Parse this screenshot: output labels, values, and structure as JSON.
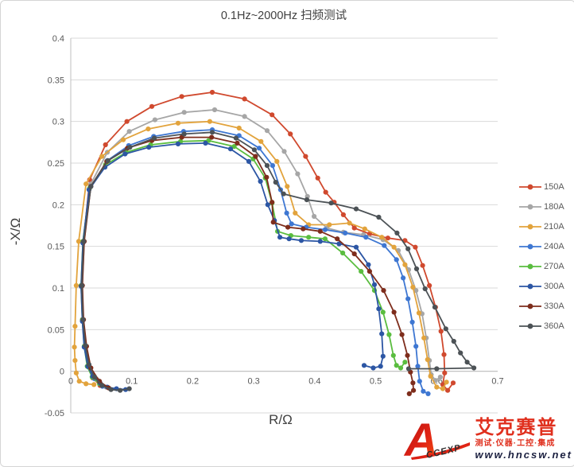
{
  "title": "0.1Hz~2000Hz 扫频测试",
  "colors": {
    "gridline": "#D9D9D9",
    "axis_line": "#BFBFBF",
    "tick_text": "#595959",
    "title_text": "#404040",
    "axis_label_text": "#3F3F3F"
  },
  "chart_data": {
    "type": "line",
    "title": "0.1Hz~2000Hz 扫频测试",
    "xlabel": "R/Ω",
    "ylabel": "-X/Ω",
    "xlim": [
      0,
      0.7
    ],
    "ylim": [
      -0.05,
      0.4
    ],
    "grid": "horizontal-only",
    "legend_position": "right",
    "markers": true,
    "x_ticks": [
      {
        "v": 0,
        "label": "0"
      },
      {
        "v": 0.1,
        "label": "0.1"
      },
      {
        "v": 0.2,
        "label": "0.2"
      },
      {
        "v": 0.3,
        "label": "0.3"
      },
      {
        "v": 0.4,
        "label": "0.4"
      },
      {
        "v": 0.5,
        "label": "0.5"
      },
      {
        "v": 0.6,
        "label": "0.6"
      },
      {
        "v": 0.7,
        "label": "0.7"
      }
    ],
    "y_ticks": [
      {
        "v": 0.4,
        "label": "0.4"
      },
      {
        "v": 0.35,
        "label": "0.35"
      },
      {
        "v": 0.3,
        "label": "0.3"
      },
      {
        "v": 0.25,
        "label": "0.25"
      },
      {
        "v": 0.2,
        "label": "0.2"
      },
      {
        "v": 0.15,
        "label": "0.15"
      },
      {
        "v": 0.1,
        "label": "0.1"
      },
      {
        "v": 0.05,
        "label": "0.05"
      },
      {
        "v": 0,
        "label": "0"
      },
      {
        "v": -0.05,
        "label": "-0.05"
      }
    ],
    "series": [
      {
        "name": "150A",
        "color": "#D0492E",
        "points": [
          [
            0.048,
            -0.017
          ],
          [
            0.036,
            -0.008
          ],
          [
            0.028,
            0.006
          ],
          [
            0.023,
            0.03
          ],
          [
            0.019,
            0.062
          ],
          [
            0.018,
            0.103
          ],
          [
            0.021,
            0.156
          ],
          [
            0.031,
            0.23
          ],
          [
            0.057,
            0.272
          ],
          [
            0.092,
            0.3
          ],
          [
            0.133,
            0.318
          ],
          [
            0.182,
            0.33
          ],
          [
            0.232,
            0.335
          ],
          [
            0.285,
            0.327
          ],
          [
            0.33,
            0.308
          ],
          [
            0.36,
            0.285
          ],
          [
            0.385,
            0.258
          ],
          [
            0.405,
            0.232
          ],
          [
            0.418,
            0.215
          ],
          [
            0.432,
            0.203
          ],
          [
            0.447,
            0.188
          ],
          [
            0.465,
            0.172
          ],
          [
            0.49,
            0.165
          ],
          [
            0.52,
            0.16
          ],
          [
            0.548,
            0.157
          ],
          [
            0.565,
            0.149
          ],
          [
            0.577,
            0.127
          ],
          [
            0.588,
            0.103
          ],
          [
            0.598,
            0.077
          ],
          [
            0.607,
            0.048
          ],
          [
            0.612,
            0.02
          ],
          [
            0.613,
            -0.002
          ],
          [
            0.61,
            -0.016
          ],
          [
            0.618,
            -0.023
          ],
          [
            0.627,
            -0.014
          ]
        ]
      },
      {
        "name": "180A",
        "color": "#A6A6A6",
        "points": [
          [
            0.058,
            -0.019
          ],
          [
            0.043,
            -0.01
          ],
          [
            0.031,
            0.005
          ],
          [
            0.024,
            0.03
          ],
          [
            0.02,
            0.062
          ],
          [
            0.019,
            0.103
          ],
          [
            0.022,
            0.156
          ],
          [
            0.033,
            0.225
          ],
          [
            0.06,
            0.263
          ],
          [
            0.096,
            0.288
          ],
          [
            0.138,
            0.302
          ],
          [
            0.186,
            0.311
          ],
          [
            0.236,
            0.314
          ],
          [
            0.285,
            0.306
          ],
          [
            0.322,
            0.289
          ],
          [
            0.35,
            0.264
          ],
          [
            0.372,
            0.237
          ],
          [
            0.388,
            0.21
          ],
          [
            0.399,
            0.186
          ],
          [
            0.42,
            0.172
          ],
          [
            0.447,
            0.167
          ],
          [
            0.48,
            0.164
          ],
          [
            0.512,
            0.158
          ],
          [
            0.537,
            0.145
          ],
          [
            0.554,
            0.122
          ],
          [
            0.566,
            0.097
          ],
          [
            0.576,
            0.069
          ],
          [
            0.583,
            0.04
          ],
          [
            0.588,
            0.013
          ],
          [
            0.591,
            -0.004
          ],
          [
            0.598,
            -0.011
          ],
          [
            0.606,
            -0.007
          ]
        ]
      },
      {
        "name": "210A",
        "color": "#E2A33C",
        "points": [
          [
            0.038,
            -0.016
          ],
          [
            0.025,
            -0.015
          ],
          [
            0.014,
            -0.012
          ],
          [
            0.009,
            -0.002
          ],
          [
            0.007,
            0.013
          ],
          [
            0.006,
            0.029
          ],
          [
            0.007,
            0.054
          ],
          [
            0.009,
            0.103
          ],
          [
            0.013,
            0.156
          ],
          [
            0.025,
            0.225
          ],
          [
            0.051,
            0.258
          ],
          [
            0.086,
            0.278
          ],
          [
            0.127,
            0.291
          ],
          [
            0.176,
            0.298
          ],
          [
            0.228,
            0.3
          ],
          [
            0.276,
            0.292
          ],
          [
            0.312,
            0.276
          ],
          [
            0.338,
            0.252
          ],
          [
            0.355,
            0.222
          ],
          [
            0.368,
            0.19
          ],
          [
            0.39,
            0.176
          ],
          [
            0.424,
            0.176
          ],
          [
            0.457,
            0.178
          ],
          [
            0.482,
            0.171
          ],
          [
            0.51,
            0.161
          ],
          [
            0.53,
            0.149
          ],
          [
            0.548,
            0.128
          ],
          [
            0.561,
            0.101
          ],
          [
            0.571,
            0.07
          ],
          [
            0.579,
            0.04
          ],
          [
            0.585,
            0.014
          ],
          [
            0.59,
            -0.006
          ],
          [
            0.6,
            -0.019
          ],
          [
            0.61,
            -0.021
          ],
          [
            0.616,
            -0.013
          ]
        ]
      },
      {
        "name": "240A",
        "color": "#3E77D2",
        "points": [
          [
            0.052,
            -0.018
          ],
          [
            0.039,
            -0.009
          ],
          [
            0.029,
            0.005
          ],
          [
            0.023,
            0.03
          ],
          [
            0.02,
            0.062
          ],
          [
            0.018,
            0.103
          ],
          [
            0.021,
            0.156
          ],
          [
            0.033,
            0.222
          ],
          [
            0.06,
            0.253
          ],
          [
            0.095,
            0.271
          ],
          [
            0.136,
            0.282
          ],
          [
            0.185,
            0.288
          ],
          [
            0.232,
            0.29
          ],
          [
            0.276,
            0.283
          ],
          [
            0.309,
            0.268
          ],
          [
            0.331,
            0.247
          ],
          [
            0.344,
            0.218
          ],
          [
            0.354,
            0.19
          ],
          [
            0.362,
            0.177
          ],
          [
            0.386,
            0.173
          ],
          [
            0.417,
            0.17
          ],
          [
            0.45,
            0.166
          ],
          [
            0.484,
            0.161
          ],
          [
            0.514,
            0.151
          ],
          [
            0.534,
            0.134
          ],
          [
            0.545,
            0.112
          ],
          [
            0.553,
            0.087
          ],
          [
            0.56,
            0.059
          ],
          [
            0.566,
            0.03
          ],
          [
            0.569,
            0.006
          ],
          [
            0.572,
            -0.012
          ],
          [
            0.578,
            -0.024
          ],
          [
            0.586,
            -0.027
          ]
        ]
      },
      {
        "name": "270A",
        "color": "#5ABD3F",
        "points": [
          [
            0.047,
            -0.015
          ],
          [
            0.035,
            -0.007
          ],
          [
            0.027,
            0.006
          ],
          [
            0.022,
            0.03
          ],
          [
            0.019,
            0.062
          ],
          [
            0.017,
            0.103
          ],
          [
            0.02,
            0.156
          ],
          [
            0.031,
            0.22
          ],
          [
            0.057,
            0.248
          ],
          [
            0.091,
            0.263
          ],
          [
            0.131,
            0.272
          ],
          [
            0.18,
            0.276
          ],
          [
            0.226,
            0.277
          ],
          [
            0.268,
            0.27
          ],
          [
            0.299,
            0.255
          ],
          [
            0.319,
            0.232
          ],
          [
            0.33,
            0.202
          ],
          [
            0.339,
            0.168
          ],
          [
            0.361,
            0.163
          ],
          [
            0.39,
            0.161
          ],
          [
            0.417,
            0.159
          ],
          [
            0.446,
            0.142
          ],
          [
            0.476,
            0.12
          ],
          [
            0.498,
            0.097
          ],
          [
            0.512,
            0.071
          ],
          [
            0.522,
            0.044
          ],
          [
            0.529,
            0.019
          ],
          [
            0.534,
            0.007
          ],
          [
            0.541,
            0.004
          ],
          [
            0.548,
            0.011
          ]
        ]
      },
      {
        "name": "300A",
        "color": "#2C56A4",
        "points": [
          [
            0.09,
            -0.022
          ],
          [
            0.075,
            -0.021
          ],
          [
            0.06,
            -0.019
          ],
          [
            0.048,
            -0.014
          ],
          [
            0.036,
            -0.006
          ],
          [
            0.028,
            0.006
          ],
          [
            0.022,
            0.029
          ],
          [
            0.019,
            0.06
          ],
          [
            0.017,
            0.102
          ],
          [
            0.02,
            0.154
          ],
          [
            0.03,
            0.218
          ],
          [
            0.056,
            0.245
          ],
          [
            0.089,
            0.261
          ],
          [
            0.128,
            0.269
          ],
          [
            0.176,
            0.273
          ],
          [
            0.221,
            0.274
          ],
          [
            0.262,
            0.267
          ],
          [
            0.292,
            0.252
          ],
          [
            0.311,
            0.228
          ],
          [
            0.323,
            0.2
          ],
          [
            0.334,
            0.181
          ],
          [
            0.343,
            0.161
          ],
          [
            0.358,
            0.159
          ],
          [
            0.378,
            0.157
          ],
          [
            0.409,
            0.156
          ],
          [
            0.44,
            0.153
          ],
          [
            0.468,
            0.149
          ],
          [
            0.488,
            0.128
          ],
          [
            0.498,
            0.104
          ],
          [
            0.505,
            0.075
          ],
          [
            0.51,
            0.045
          ],
          [
            0.512,
            0.018
          ],
          [
            0.508,
            0.006
          ],
          [
            0.496,
            0.004
          ],
          [
            0.481,
            0.007
          ]
        ]
      },
      {
        "name": "330A",
        "color": "#7E2D1C",
        "points": [
          [
            0.062,
            -0.02
          ],
          [
            0.047,
            -0.012
          ],
          [
            0.033,
            0.004
          ],
          [
            0.026,
            0.03
          ],
          [
            0.021,
            0.062
          ],
          [
            0.019,
            0.103
          ],
          [
            0.022,
            0.156
          ],
          [
            0.033,
            0.222
          ],
          [
            0.059,
            0.252
          ],
          [
            0.093,
            0.268
          ],
          [
            0.133,
            0.277
          ],
          [
            0.182,
            0.281
          ],
          [
            0.231,
            0.281
          ],
          [
            0.273,
            0.274
          ],
          [
            0.303,
            0.258
          ],
          [
            0.321,
            0.233
          ],
          [
            0.33,
            0.203
          ],
          [
            0.332,
            0.179
          ],
          [
            0.356,
            0.173
          ],
          [
            0.381,
            0.171
          ],
          [
            0.409,
            0.168
          ],
          [
            0.437,
            0.159
          ],
          [
            0.465,
            0.141
          ],
          [
            0.49,
            0.12
          ],
          [
            0.513,
            0.097
          ],
          [
            0.53,
            0.071
          ],
          [
            0.543,
            0.044
          ],
          [
            0.552,
            0.019
          ],
          [
            0.557,
            -0.001
          ],
          [
            0.561,
            -0.014
          ],
          [
            0.562,
            -0.023
          ],
          [
            0.555,
            -0.027
          ]
        ]
      },
      {
        "name": "360A",
        "color": "#4C5256",
        "points": [
          [
            0.096,
            -0.021
          ],
          [
            0.081,
            -0.023
          ],
          [
            0.066,
            -0.022
          ],
          [
            0.051,
            -0.017
          ],
          [
            0.039,
            -0.007
          ],
          [
            0.03,
            0.008
          ],
          [
            0.024,
            0.031
          ],
          [
            0.02,
            0.062
          ],
          [
            0.018,
            0.103
          ],
          [
            0.021,
            0.156
          ],
          [
            0.033,
            0.222
          ],
          [
            0.061,
            0.253
          ],
          [
            0.097,
            0.269
          ],
          [
            0.137,
            0.28
          ],
          [
            0.186,
            0.285
          ],
          [
            0.232,
            0.287
          ],
          [
            0.271,
            0.28
          ],
          [
            0.301,
            0.266
          ],
          [
            0.322,
            0.247
          ],
          [
            0.336,
            0.227
          ],
          [
            0.349,
            0.213
          ],
          [
            0.387,
            0.206
          ],
          [
            0.427,
            0.202
          ],
          [
            0.468,
            0.195
          ],
          [
            0.505,
            0.185
          ],
          [
            0.535,
            0.166
          ],
          [
            0.553,
            0.147
          ],
          [
            0.567,
            0.123
          ],
          [
            0.581,
            0.099
          ],
          [
            0.597,
            0.077
          ],
          [
            0.615,
            0.051
          ],
          [
            0.628,
            0.036
          ],
          [
            0.639,
            0.022
          ],
          [
            0.65,
            0.011
          ],
          [
            0.661,
            0.004
          ],
          [
            0.6,
            0.003
          ],
          [
            0.554,
            0.003
          ]
        ]
      }
    ]
  },
  "logo": {
    "letter": "A",
    "letters_rest": "CCEXP",
    "brand": "艾克赛普",
    "tagline": "测试·仪器·工控·集成",
    "url": "www.hncsw.net"
  }
}
